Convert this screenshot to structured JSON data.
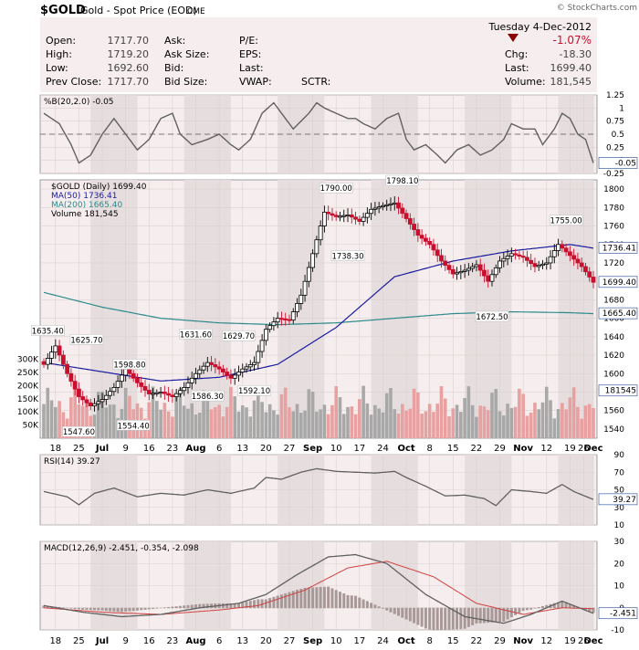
{
  "header": {
    "symbol": "$GOLD",
    "name": "Gold - Spot Price (EOD)",
    "exchange": "CME",
    "watermark": "© StockCharts.com",
    "date": "Tuesday  4-Dec-2012",
    "change_pct": "-1.07%",
    "fields": [
      {
        "label": "Open:",
        "value": "1717.70"
      },
      {
        "label": "High:",
        "value": "1719.20"
      },
      {
        "label": "Low:",
        "value": "1692.60"
      },
      {
        "label": "Prev Close:",
        "value": "1717.70"
      },
      {
        "label": "Ask:",
        "value": ""
      },
      {
        "label": "Ask Size:",
        "value": ""
      },
      {
        "label": "Bid:",
        "value": ""
      },
      {
        "label": "Bid Size:",
        "value": ""
      },
      {
        "label": "P/E:",
        "value": ""
      },
      {
        "label": "EPS:",
        "value": ""
      },
      {
        "label": "Last:",
        "value": ""
      },
      {
        "label": "VWAP:",
        "value": ""
      },
      {
        "label": "SCTR:",
        "value": ""
      }
    ],
    "right_fields": [
      {
        "label": "Chg:",
        "value": "-18.30"
      },
      {
        "label": "Last:",
        "value": "1699.40"
      },
      {
        "label": "Volume:",
        "value": "181,545"
      }
    ]
  },
  "colors": {
    "up": "#000000",
    "down": "#c8102e",
    "ma50": "#1a1aa0",
    "ma200": "#2a8a8a",
    "panel_bg": "#f6eeee",
    "volume_up": "#a8a8a8",
    "volume_down": "#e8a0a0",
    "indicator": "#606060",
    "signal": "#d04040"
  },
  "chart_data": [
    {
      "type": "candlestick",
      "title": "$GOLD (Daily) 1699.40",
      "legend": [
        "MA(50) 1736.41",
        "MA(200) 1665.40",
        "Volume 181,545"
      ],
      "ylim": [
        1530,
        1810
      ],
      "y_ticks": [
        1540,
        1560,
        1580,
        1600,
        1620,
        1640,
        1660,
        1680,
        1700,
        1720,
        1740,
        1760,
        1780,
        1800
      ],
      "x_tick_labels": [
        "18",
        "25",
        "Jul",
        "9",
        "16",
        "23",
        "Aug",
        "6",
        "13",
        "20",
        "27",
        "Sep",
        "10",
        "17",
        "24",
        "Oct",
        "8",
        "15",
        "22",
        "29",
        "Nov",
        "12",
        "19",
        "26",
        "Dec"
      ],
      "annotations": [
        "1635.40",
        "1625.70",
        "1598.80",
        "1547.60",
        "1554.40",
        "1631.60",
        "1586.30",
        "1629.70",
        "1592.10",
        "1790.00",
        "1798.10",
        "1738.30",
        "1755.00",
        "1672.50"
      ],
      "last_labels": [
        "1736.41",
        "1699.40",
        "1665.40",
        "181545"
      ],
      "volume_ticks": [
        "300K",
        "250K",
        "200K",
        "150K",
        "100K",
        "50K"
      ],
      "close_path": [
        [
          0,
          1610
        ],
        [
          6,
          1630
        ],
        [
          12,
          1600
        ],
        [
          18,
          1575
        ],
        [
          24,
          1565
        ],
        [
          30,
          1572
        ],
        [
          36,
          1585
        ],
        [
          42,
          1605
        ],
        [
          48,
          1590
        ],
        [
          54,
          1578
        ],
        [
          60,
          1580
        ],
        [
          66,
          1575
        ],
        [
          72,
          1585
        ],
        [
          78,
          1600
        ],
        [
          84,
          1612
        ],
        [
          90,
          1605
        ],
        [
          96,
          1595
        ],
        [
          102,
          1605
        ],
        [
          108,
          1612
        ],
        [
          114,
          1648
        ],
        [
          120,
          1660
        ],
        [
          126,
          1658
        ],
        [
          132,
          1685
        ],
        [
          138,
          1730
        ],
        [
          144,
          1775
        ],
        [
          150,
          1770
        ],
        [
          156,
          1772
        ],
        [
          162,
          1765
        ],
        [
          168,
          1778
        ],
        [
          174,
          1782
        ],
        [
          180,
          1785
        ],
        [
          186,
          1768
        ],
        [
          192,
          1750
        ],
        [
          198,
          1740
        ],
        [
          204,
          1722
        ],
        [
          210,
          1708
        ],
        [
          216,
          1712
        ],
        [
          222,
          1718
        ],
        [
          228,
          1700
        ],
        [
          234,
          1722
        ],
        [
          240,
          1730
        ],
        [
          246,
          1726
        ],
        [
          252,
          1716
        ],
        [
          258,
          1720
        ],
        [
          264,
          1740
        ],
        [
          270,
          1728
        ],
        [
          276,
          1716
        ],
        [
          282,
          1699
        ]
      ],
      "ma50_path": [
        [
          0,
          1612
        ],
        [
          30,
          1602
        ],
        [
          60,
          1592
        ],
        [
          90,
          1596
        ],
        [
          120,
          1610
        ],
        [
          150,
          1650
        ],
        [
          180,
          1705
        ],
        [
          210,
          1722
        ],
        [
          240,
          1733
        ],
        [
          270,
          1740
        ],
        [
          282,
          1736
        ]
      ],
      "ma200_path": [
        [
          0,
          1688
        ],
        [
          30,
          1672
        ],
        [
          60,
          1660
        ],
        [
          90,
          1655
        ],
        [
          120,
          1653
        ],
        [
          150,
          1655
        ],
        [
          180,
          1660
        ],
        [
          210,
          1665
        ],
        [
          240,
          1667
        ],
        [
          270,
          1666
        ],
        [
          282,
          1665
        ]
      ]
    },
    {
      "type": "line",
      "title": "%B(20,2.0) -0.05",
      "ylim": [
        -0.25,
        1.25
      ],
      "y_ticks": [
        1.25,
        1.0,
        0.75,
        0.5,
        0.25,
        0.0,
        -0.25
      ],
      "last_label": "-0.05"
    },
    {
      "type": "line",
      "title": "RSI(14) 39.27",
      "ylim": [
        10,
        90
      ],
      "y_ticks": [
        90,
        70,
        50,
        30,
        10
      ],
      "last_label": "39.27"
    },
    {
      "type": "line",
      "title": "MACD(12,26,9) -2.451, -0.354, -2.098",
      "ylim": [
        -10,
        30
      ],
      "y_ticks": [
        30,
        20,
        10,
        0,
        -10
      ],
      "last_label": "-2.451"
    }
  ]
}
